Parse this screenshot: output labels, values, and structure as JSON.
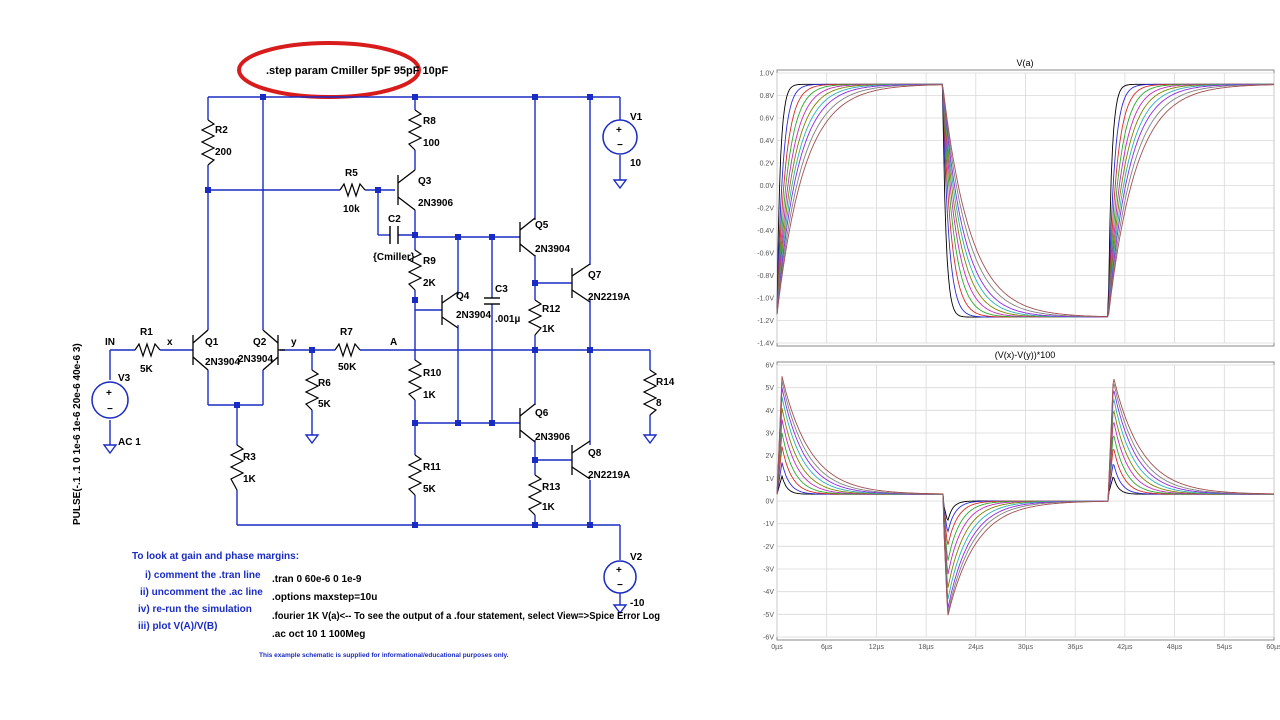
{
  "schematic": {
    "step_directive": ".step param Cmiller 5pF 95pF 10pF",
    "source_pulse": "PULSE(-.1 .1 0 1e-6 1e-6 20e-6 40e-6 3)",
    "nets": {
      "in": "IN",
      "x": "x",
      "y": "y",
      "a": "A"
    },
    "r1": {
      "name": "R1",
      "value": "5K"
    },
    "r2": {
      "name": "R2",
      "value": "200"
    },
    "r3": {
      "name": "R3",
      "value": "1K"
    },
    "r5": {
      "name": "R5",
      "value": "10k"
    },
    "r6": {
      "name": "R6",
      "value": "5K"
    },
    "r7": {
      "name": "R7",
      "value": "50K"
    },
    "r8": {
      "name": "R8",
      "value": "100"
    },
    "r9": {
      "name": "R9",
      "value": "2K"
    },
    "r10": {
      "name": "R10",
      "value": "1K"
    },
    "r11": {
      "name": "R11",
      "value": "5K"
    },
    "r12": {
      "name": "R12",
      "value": "1K"
    },
    "r13": {
      "name": "R13",
      "value": "1K"
    },
    "r14": {
      "name": "R14",
      "value": "8"
    },
    "c2": {
      "name": "C2",
      "value": "{Cmiller}"
    },
    "c3": {
      "name": "C3",
      "value": ".001µ"
    },
    "q1": {
      "name": "Q1",
      "model": "2N3904"
    },
    "q2": {
      "name": "Q2",
      "model": "2N3904"
    },
    "q3": {
      "name": "Q3",
      "model": "2N3906"
    },
    "q4": {
      "name": "Q4",
      "model": "2N3904"
    },
    "q5": {
      "name": "Q5",
      "model": "2N3904"
    },
    "q6": {
      "name": "Q6",
      "model": "2N3906"
    },
    "q7": {
      "name": "Q7",
      "model": "2N2219A"
    },
    "q8": {
      "name": "Q8",
      "model": "2N2219A"
    },
    "v1": {
      "name": "V1",
      "value": "10"
    },
    "v2": {
      "name": "V2",
      "value": "-10"
    },
    "v3": {
      "name": "V3",
      "value": "AC 1"
    },
    "notes": {
      "title": "To look at gain and phase margins:",
      "lines": [
        "i) comment the .tran line",
        "ii) uncomment the .ac line",
        "iv) re-run the simulation",
        "iii) plot V(A)/V(B)"
      ]
    },
    "directives": [
      ".tran 0 60e-6 0 1e-9",
      ".options maxstep=10u",
      ".fourier 1K V(a)<-- To see the output of a .four statement, select View=>Spice Error Log",
      ".ac oct 10 1 100Meg"
    ],
    "disclaimer": "This example schematic is supplied for informational/educational purposes only."
  },
  "chart_data": [
    {
      "type": "line",
      "title": "V(a)",
      "x_ticks": [
        "0µs",
        "6µs",
        "12µs",
        "18µs",
        "24µs",
        "30µs",
        "36µs",
        "42µs",
        "48µs",
        "54µs",
        "60µs"
      ],
      "y_ticks": [
        "1.0V",
        "0.8V",
        "0.6V",
        "0.4V",
        "0.2V",
        "0.0V",
        "-0.2V",
        "-0.4V",
        "-0.6V",
        "-0.8V",
        "-1.0V",
        "-1.2V",
        "-1.4V"
      ],
      "ylim": [
        -1.4,
        1.0
      ],
      "xlim": [
        0,
        60
      ],
      "high_level": 0.9,
      "low_level": -1.17,
      "edges": [
        {
          "t": 0,
          "dir": "up"
        },
        {
          "t": 20,
          "dir": "down"
        },
        {
          "t": 40,
          "dir": "up"
        }
      ],
      "series_colors": [
        "#000000",
        "#2b2bd6",
        "#d62b2b",
        "#2ba82b",
        "#c02bc0",
        "#808000",
        "#2bb0b0",
        "#8a2be2",
        "#808080",
        "#a05050"
      ],
      "time_constants_us": [
        0.4,
        0.7,
        1.0,
        1.3,
        1.6,
        1.9,
        2.2,
        2.5,
        2.9,
        3.3
      ]
    },
    {
      "type": "line",
      "title": "(V(x)-V(y))*100",
      "x_ticks": [
        "0µs",
        "6µs",
        "12µs",
        "18µs",
        "24µs",
        "30µs",
        "36µs",
        "42µs",
        "48µs",
        "54µs",
        "60µs"
      ],
      "y_ticks": [
        "6V",
        "5V",
        "4V",
        "3V",
        "2V",
        "1V",
        "0V",
        "-1V",
        "-2V",
        "-3V",
        "-4V",
        "-5V",
        "-6V"
      ],
      "ylim": [
        -6,
        6
      ],
      "xlim": [
        0,
        60
      ],
      "baseline_after_rise": 0.3,
      "baseline_after_fall": 0.0,
      "peaks_rise": [
        1.1,
        1.7,
        2.4,
        3.0,
        3.6,
        4.1,
        4.6,
        5.0,
        5.3,
        5.5
      ],
      "peaks_fall": [
        -0.9,
        -1.4,
        -2.0,
        -2.7,
        -3.3,
        -3.9,
        -4.4,
        -4.8,
        -5.0,
        -5.1
      ],
      "series_colors": [
        "#000000",
        "#2b2bd6",
        "#d62b2b",
        "#2ba82b",
        "#c02bc0",
        "#808000",
        "#2bb0b0",
        "#8a2be2",
        "#808080",
        "#a05050"
      ],
      "time_constants_us": [
        0.6,
        0.9,
        1.2,
        1.5,
        1.8,
        2.1,
        2.4,
        2.7,
        3.0,
        3.4
      ]
    }
  ]
}
